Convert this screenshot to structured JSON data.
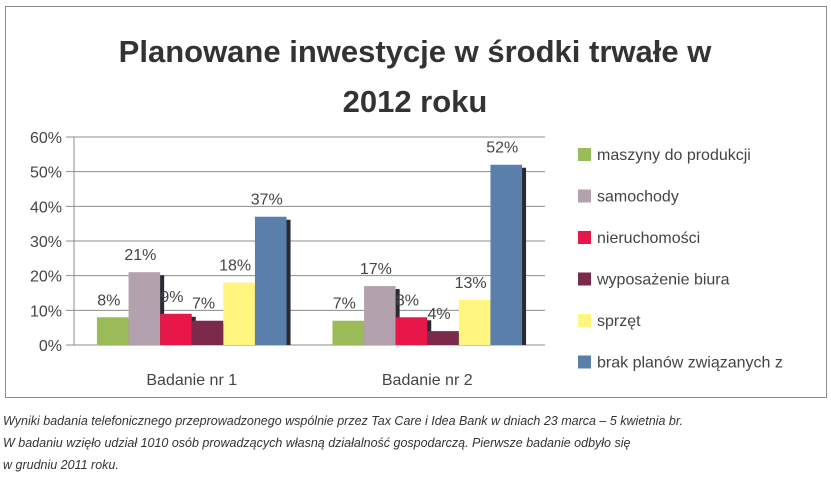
{
  "chart_data": {
    "type": "bar",
    "title": [
      "Planowane inwestycje w środki trwałe w",
      "2012 roku"
    ],
    "categories": [
      "Badanie nr 1",
      "Badanie nr 2"
    ],
    "series": [
      {
        "name": "maszyny do produkcji",
        "values": [
          8,
          7
        ],
        "labels": [
          "8%",
          "7%"
        ],
        "color": "#9bbb59"
      },
      {
        "name": "samochody",
        "values": [
          21,
          17
        ],
        "labels": [
          "21%",
          "17%"
        ],
        "color": "#b3a2ad"
      },
      {
        "name": "nieruchomości",
        "values": [
          9,
          8
        ],
        "labels": [
          "9%",
          "8%"
        ],
        "color": "#e8174a"
      },
      {
        "name": "wyposażenie biura",
        "values": [
          7,
          4
        ],
        "labels": [
          "7%",
          "4%"
        ],
        "color": "#7b2a4b"
      },
      {
        "name": "sprzęt",
        "values": [
          18,
          13
        ],
        "labels": [
          "18%",
          "13%"
        ],
        "color": "#fff57f"
      },
      {
        "name": "brak planów związanych z inwestycją",
        "values": [
          37,
          52
        ],
        "labels": [
          "37%",
          "52%"
        ],
        "color": "#5b7fab"
      }
    ],
    "yticks": [
      "0%",
      "10%",
      "20%",
      "30%",
      "40%",
      "50%",
      "60%"
    ],
    "ylim": [
      0,
      60
    ],
    "grid": true,
    "legend": "right"
  },
  "caption": [
    "Wyniki badania telefonicznego przeprowadzonego wspólnie przez Tax Care i Idea Bank w dniach 23 marca – 5 kwietnia br.",
    "W badaniu wzięło udział 1010 osób prowadzących własną działalność gospodarczą. Pierwsze badanie odbyło się",
    "w grudniu 2011 roku."
  ]
}
